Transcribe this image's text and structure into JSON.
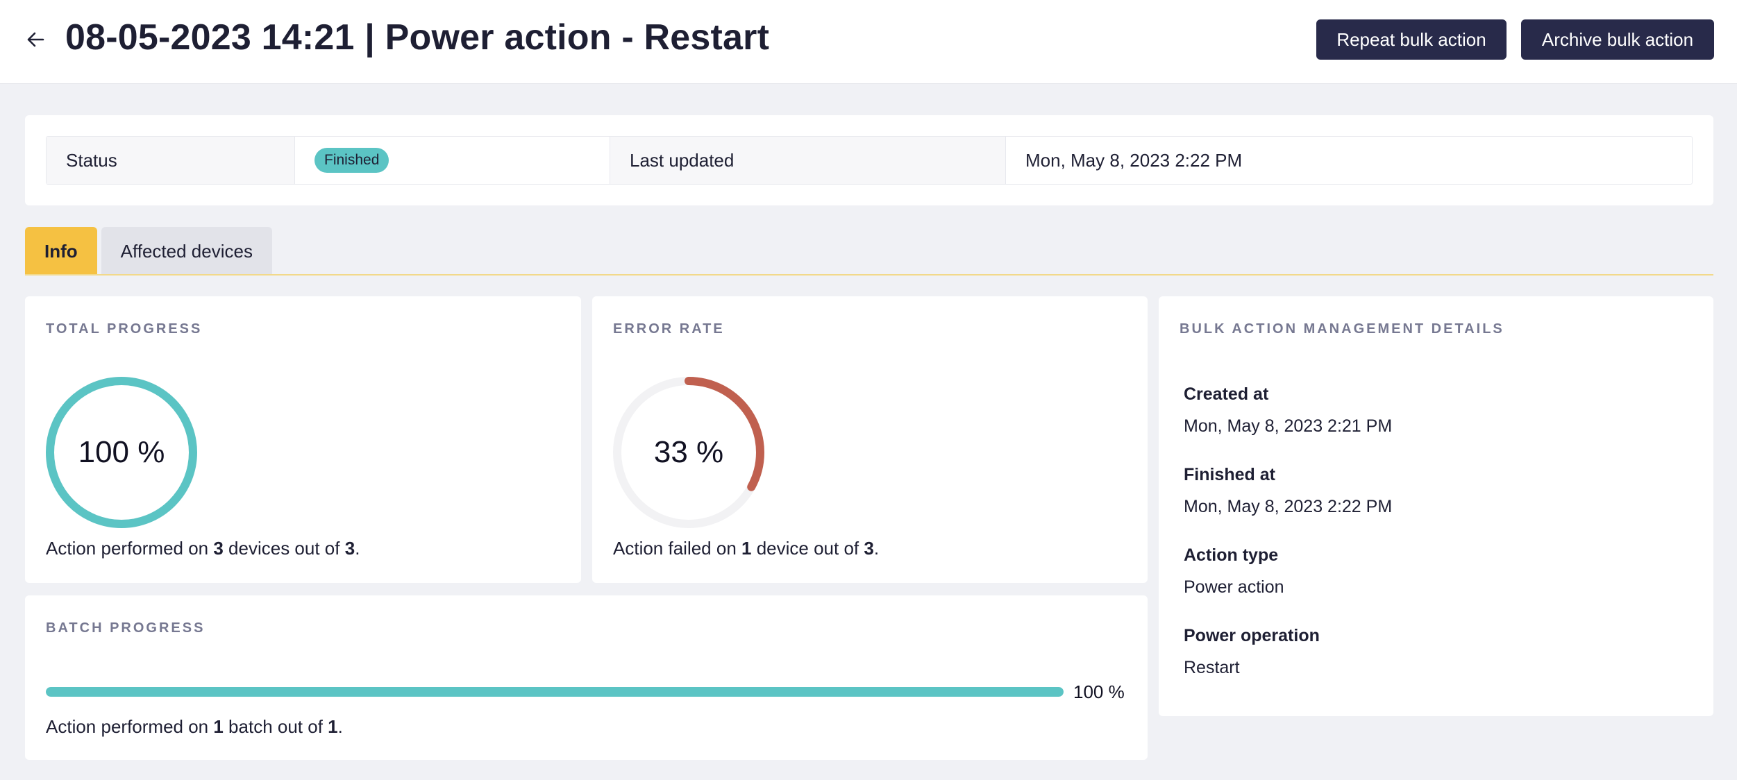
{
  "header": {
    "title": "08-05-2023 14:21 | Power action - Restart",
    "repeat_label": "Repeat bulk action",
    "archive_label": "Archive bulk action",
    "back_icon": "arrow-left-icon"
  },
  "status": {
    "status_label": "Status",
    "status_value": "Finished",
    "updated_label": "Last updated",
    "updated_value": "Mon, May 8, 2023 2:22 PM"
  },
  "tabs": [
    {
      "label": "Info",
      "active": true
    },
    {
      "label": "Affected devices",
      "active": false
    }
  ],
  "total_progress": {
    "title": "TOTAL PROGRESS",
    "percent": 100,
    "percent_text": "100 %",
    "caption_prefix": "Action performed on ",
    "done": "3",
    "caption_middle": " devices out of ",
    "total": "3",
    "caption_suffix": ".",
    "color": "#5bc4c4"
  },
  "error_rate": {
    "title": "ERROR RATE",
    "percent": 33,
    "percent_text": "33 %",
    "caption_prefix": "Action failed on ",
    "failed": "1",
    "caption_middle": " device out of ",
    "total": "3",
    "caption_suffix": ".",
    "color": "#c0604f",
    "track_color": "#f2f2f4"
  },
  "batch_progress": {
    "title": "BATCH PROGRESS",
    "percent": 100,
    "percent_text": "100 %",
    "caption_prefix": "Action performed on ",
    "done": "1",
    "caption_middle": " batch out of ",
    "total": "1",
    "caption_suffix": "."
  },
  "details": {
    "title": "BULK ACTION MANAGEMENT DETAILS",
    "items": [
      {
        "key": "Created at",
        "value": "Mon, May 8, 2023 2:21 PM"
      },
      {
        "key": "Finished at",
        "value": "Mon, May 8, 2023 2:22 PM"
      },
      {
        "key": "Action type",
        "value": "Power action"
      },
      {
        "key": "Power operation",
        "value": "Restart"
      }
    ]
  }
}
